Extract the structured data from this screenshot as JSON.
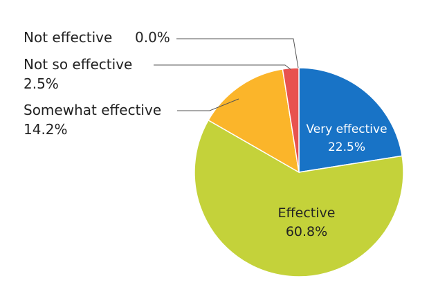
{
  "chart_data": {
    "type": "pie",
    "title": "",
    "slices": [
      {
        "name": "Very effective",
        "value": 22.5,
        "label": "22.5%",
        "color": "#1873c6"
      },
      {
        "name": "Effective",
        "value": 60.8,
        "label": "60.8%",
        "color": "#c4d23a"
      },
      {
        "name": "Somewhat effective",
        "value": 14.2,
        "label": "14.2%",
        "color": "#fbb52a"
      },
      {
        "name": "Not so effective",
        "value": 2.5,
        "label": "2.5%",
        "color": "#e8524f"
      },
      {
        "name": "Not effective",
        "value": 0.0,
        "label": "0.0%",
        "color": "#9b9b9b"
      }
    ],
    "legend": "none"
  }
}
